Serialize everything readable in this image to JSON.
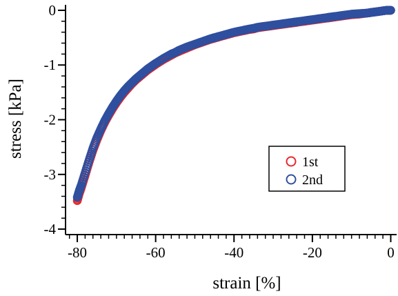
{
  "chart_data": {
    "type": "scatter",
    "title": "",
    "xlabel": "strain [%]",
    "ylabel": "stress [kPa]",
    "xlim": [
      -83,
      1.5
    ],
    "ylim": [
      -4.1,
      0.1
    ],
    "x_ticks": [
      -80,
      -60,
      -40,
      -20,
      0
    ],
    "y_ticks": [
      0,
      -1,
      -2,
      -3,
      -4
    ],
    "x_minor_step": 2,
    "y_minor_step": 0.2,
    "grid": false,
    "legend": {
      "position": "bottom-right",
      "entries": [
        "1st",
        "2nd"
      ]
    },
    "colors": {
      "1st": "#e8282b",
      "2nd": "#2f4f9f"
    },
    "series": [
      {
        "name": "1st",
        "marker": "open-circle",
        "x": [
          -80,
          -79.5,
          -79,
          -78,
          -77,
          -76,
          -75,
          -74,
          -73,
          -72,
          -71,
          -70,
          -69,
          -68,
          -67,
          -66,
          -65,
          -64,
          -63,
          -62,
          -61,
          -60,
          -58,
          -56,
          -55,
          -54,
          -52,
          -50,
          -48,
          -46,
          -45,
          -44,
          -42,
          -40,
          -38,
          -36,
          -35,
          -34,
          -32,
          -30,
          -28,
          -26,
          -25,
          -24,
          -22,
          -20,
          -18,
          -16,
          -15,
          -14,
          -12,
          -10,
          -8,
          -6,
          -5,
          -4,
          -3,
          -2,
          -1,
          0
        ],
        "y": [
          -3.48,
          -3.35,
          -3.25,
          -3.02,
          -2.78,
          -2.56,
          -2.37,
          -2.2,
          -2.05,
          -1.92,
          -1.8,
          -1.69,
          -1.59,
          -1.5,
          -1.42,
          -1.34,
          -1.27,
          -1.21,
          -1.15,
          -1.09,
          -1.04,
          -0.99,
          -0.9,
          -0.82,
          -0.78,
          -0.75,
          -0.69,
          -0.63,
          -0.58,
          -0.53,
          -0.51,
          -0.49,
          -0.45,
          -0.41,
          -0.38,
          -0.35,
          -0.34,
          -0.32,
          -0.3,
          -0.28,
          -0.26,
          -0.24,
          -0.23,
          -0.22,
          -0.2,
          -0.18,
          -0.16,
          -0.14,
          -0.13,
          -0.12,
          -0.1,
          -0.08,
          -0.07,
          -0.05,
          -0.04,
          -0.03,
          -0.02,
          -0.01,
          0.0,
          0.0
        ]
      },
      {
        "name": "2nd",
        "marker": "open-circle",
        "x": [
          -80,
          -79.5,
          -79,
          -78,
          -77,
          -76,
          -75,
          -74,
          -73,
          -72,
          -71,
          -70,
          -69,
          -68,
          -67,
          -66,
          -65,
          -64,
          -63,
          -62,
          -61,
          -60,
          -58,
          -56,
          -55,
          -54,
          -52,
          -50,
          -48,
          -46,
          -45,
          -44,
          -42,
          -40,
          -38,
          -36,
          -35,
          -34,
          -32,
          -30,
          -28,
          -26,
          -25,
          -24,
          -22,
          -20,
          -18,
          -16,
          -15,
          -14,
          -12,
          -10,
          -8,
          -6,
          -5,
          -4,
          -3,
          -2,
          -1,
          0
        ],
        "y": [
          -3.42,
          -3.3,
          -3.2,
          -2.97,
          -2.74,
          -2.52,
          -2.33,
          -2.17,
          -2.02,
          -1.89,
          -1.77,
          -1.66,
          -1.56,
          -1.47,
          -1.39,
          -1.32,
          -1.25,
          -1.19,
          -1.13,
          -1.07,
          -1.02,
          -0.97,
          -0.88,
          -0.8,
          -0.77,
          -0.73,
          -0.67,
          -0.62,
          -0.57,
          -0.52,
          -0.5,
          -0.48,
          -0.44,
          -0.4,
          -0.37,
          -0.34,
          -0.33,
          -0.31,
          -0.29,
          -0.27,
          -0.25,
          -0.23,
          -0.22,
          -0.21,
          -0.19,
          -0.17,
          -0.15,
          -0.13,
          -0.12,
          -0.11,
          -0.09,
          -0.07,
          -0.06,
          -0.05,
          -0.04,
          -0.03,
          -0.02,
          -0.01,
          0.0,
          0.0
        ]
      }
    ]
  }
}
